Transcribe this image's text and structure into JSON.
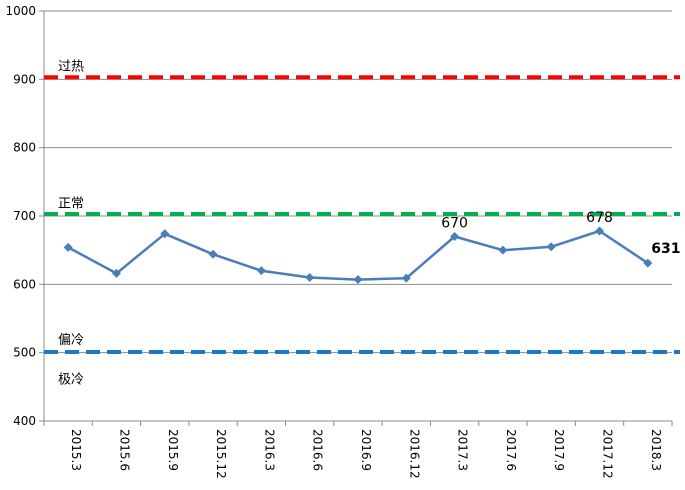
{
  "chart_data": {
    "type": "line",
    "categories": [
      "2015.3",
      "2015.6",
      "2015.9",
      "2015.12",
      "2016.3",
      "2016.6",
      "2016.9",
      "2016.12",
      "2017.3",
      "2017.6",
      "2017.9",
      "2017.12",
      "2018.3"
    ],
    "series": [
      {
        "values": [
          654,
          616,
          674,
          644,
          620,
          610,
          607,
          609,
          670,
          650,
          655,
          678,
          631
        ],
        "color": "#4a7ebb"
      }
    ],
    "ylim": [
      400,
      1000
    ],
    "yticks": [
      400,
      500,
      600,
      700,
      800,
      900,
      1000
    ],
    "grid": true,
    "data_labels": [
      {
        "index": 8,
        "text": "670",
        "bold": false
      },
      {
        "index": 11,
        "text": "678",
        "bold": false
      },
      {
        "index": 12,
        "text": "631",
        "bold": true
      }
    ],
    "reference_lines": [
      {
        "value": 903,
        "color": "#ff0000"
      },
      {
        "value": 703,
        "color": "#00b050"
      },
      {
        "value": 501,
        "color": "#1f77c4"
      }
    ],
    "zone_labels": [
      {
        "text": "过热",
        "value": 920
      },
      {
        "text": "正常",
        "value": 720
      },
      {
        "text": "偏冷",
        "value": 520
      },
      {
        "text": "极冷",
        "value": 462
      }
    ]
  }
}
